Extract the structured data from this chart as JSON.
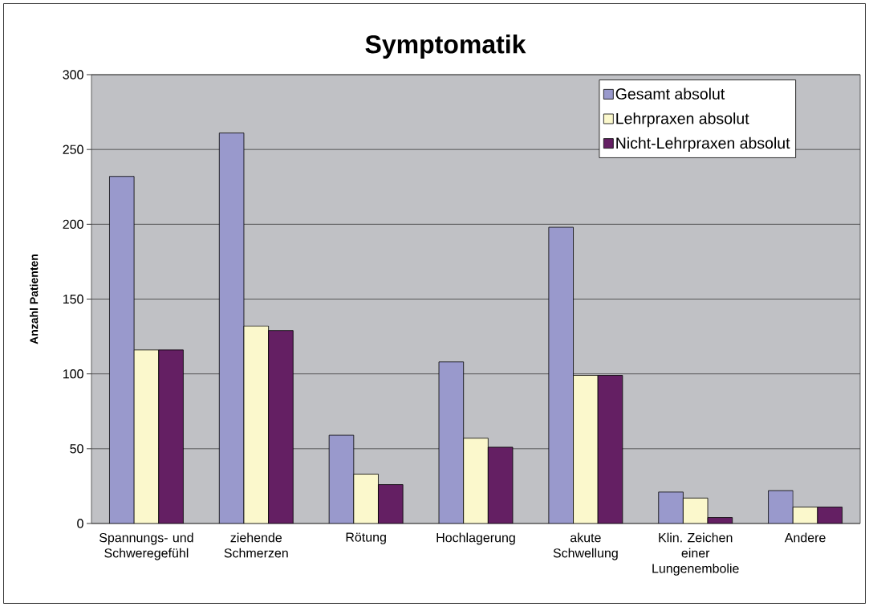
{
  "chart_data": {
    "type": "bar",
    "title": "Symptomatik",
    "ylabel": "Anzahl Patienten",
    "categories": [
      "Spannungs- und Schweregefühl",
      "ziehende Schmerzen",
      "Rötung",
      "Hochlagerung",
      "akute Schwellung",
      "Klin. Zeichen einer Lungenembolie",
      "Andere"
    ],
    "series": [
      {
        "name": "Gesamt absolut",
        "color": "#9999cc",
        "values": [
          232,
          261,
          59,
          108,
          198,
          21,
          22
        ]
      },
      {
        "name": "Lehrpraxen absolut",
        "color": "#fbf8cc",
        "values": [
          116,
          132,
          33,
          57,
          99,
          17,
          11
        ]
      },
      {
        "name": "Nicht-Lehrpraxen absolut",
        "color": "#641f63",
        "values": [
          116,
          129,
          26,
          51,
          99,
          4,
          11
        ]
      }
    ],
    "ylim": [
      0,
      300
    ],
    "yticks": [
      0,
      50,
      100,
      150,
      200,
      250,
      300
    ],
    "grid": "y",
    "legend": "top right"
  }
}
